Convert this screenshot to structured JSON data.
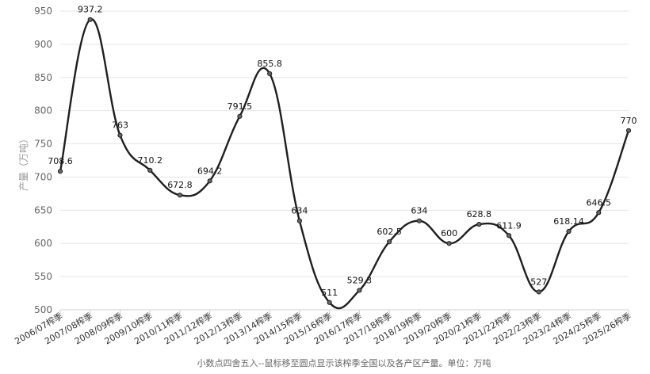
{
  "chart_data": {
    "type": "line",
    "categories": [
      "2006/07榨季",
      "2007/08榨季",
      "2008/09榨季",
      "2009/10榨季",
      "2010/11榨季",
      "2011/12榨季",
      "2012/13榨季",
      "2013/14榨季",
      "2014/15榨季",
      "2015/16榨季",
      "2016/17榨季",
      "2017/18榨季",
      "2018/19榨季",
      "2019/20榨季",
      "2020/21榨季",
      "2021/22榨季",
      "2022/23榨季",
      "2023/24榨季",
      "2024/25榨季",
      "2025/26榨季"
    ],
    "series": [
      {
        "values": [
          708.6,
          937.2,
          763,
          710.2,
          672.8,
          694.2,
          791.5,
          855.8,
          634,
          511,
          529.3,
          602.5,
          634,
          600,
          628.8,
          611.9,
          527,
          618.14,
          646.5,
          770
        ],
        "labels": [
          "708.6",
          "937.2",
          "763",
          "710.2",
          "672.8",
          "694.2",
          "791.5",
          "855.8",
          "634",
          "511",
          "529.3",
          "602.5",
          "634",
          "600",
          "628.8",
          "611.9",
          "527",
          "618.14",
          "646.5",
          "770"
        ]
      }
    ],
    "ylabel": "产量（万吨）",
    "ylim": [
      500,
      950
    ],
    "yticks": [
      "500",
      "550",
      "600",
      "650",
      "700",
      "750",
      "800",
      "850",
      "900",
      "950"
    ],
    "grid": true,
    "line_color": "#1f1f1f",
    "footnote": "小数点四舍五入--鼠标移至圆点显示该榨季全国以及各产区产量。单位：万吨"
  }
}
